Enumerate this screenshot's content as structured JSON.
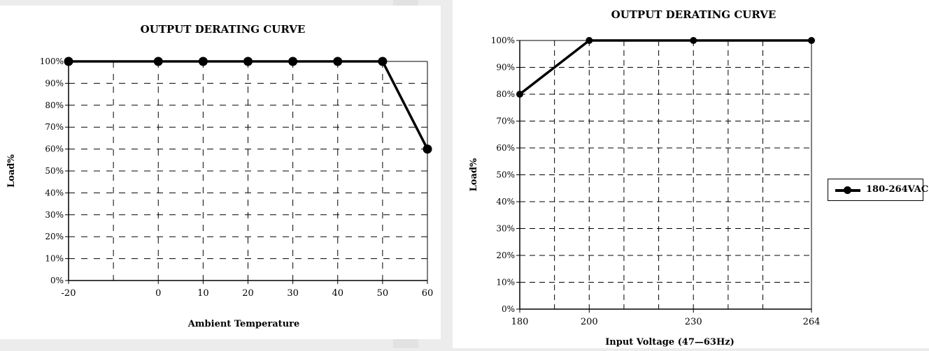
{
  "chart_data": [
    {
      "type": "line",
      "title": "OUTPUT DERATING CURVE",
      "xlabel": "Ambient Temperature",
      "ylabel": "Load%",
      "xlim": [
        -20,
        60
      ],
      "ylim": [
        0,
        100
      ],
      "x_ticks": [
        "-20",
        "0",
        "10",
        "20",
        "30",
        "40",
        "50",
        "60"
      ],
      "y_ticks": [
        "0%",
        "10%",
        "20%",
        "30%",
        "40%",
        "50%",
        "60%",
        "70%",
        "80%",
        "90%",
        "100%"
      ],
      "grid": true,
      "series": [
        {
          "x": [
            -20,
            0,
            10,
            20,
            30,
            40,
            50,
            60
          ],
          "y": [
            100,
            100,
            100,
            100,
            100,
            100,
            100,
            60
          ]
        }
      ]
    },
    {
      "type": "line",
      "title": "OUTPUT DERATING CURVE",
      "xlabel": "Input Voltage (47—63Hz)",
      "ylabel": "Load%",
      "xlim": [
        180,
        264
      ],
      "ylim": [
        0,
        100
      ],
      "x_ticks": [
        "180",
        "200",
        "230",
        "264"
      ],
      "y_ticks": [
        "0%",
        "10%",
        "20%",
        "30%",
        "40%",
        "50%",
        "60%",
        "70%",
        "80%",
        "90%",
        "100%"
      ],
      "grid": true,
      "legend": "right",
      "series": [
        {
          "name": "180-264VAC",
          "x": [
            180,
            200,
            230,
            264
          ],
          "y": [
            80,
            100,
            100,
            100
          ]
        }
      ]
    }
  ]
}
